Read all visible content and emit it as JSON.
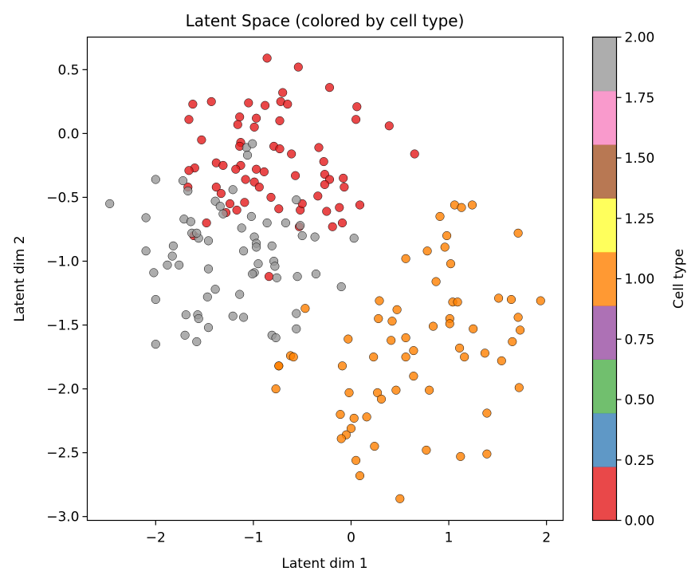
{
  "chart_data": {
    "type": "scatter",
    "title": "Latent Space (colored by cell type)",
    "xlabel": "Latent dim 1",
    "ylabel": "Latent dim 2",
    "xlim": [
      -2.7,
      2.17
    ],
    "ylim": [
      -3.03,
      0.755
    ],
    "xticks": [
      -2,
      -1,
      0,
      1,
      2
    ],
    "xtick_labels": [
      "−2",
      "−1",
      "0",
      "1",
      "2"
    ],
    "yticks": [
      0.5,
      0.0,
      -0.5,
      -1.0,
      -1.5,
      -2.0,
      -2.5,
      -3.0
    ],
    "ytick_labels": [
      "0.5",
      "0.0",
      "−0.5",
      "−1.0",
      "−1.5",
      "−2.0",
      "−2.5",
      "−3.0"
    ],
    "grid": false,
    "colorbar": {
      "label": "Cell type",
      "range": [
        0.0,
        2.0
      ],
      "ticks": [
        0.0,
        0.25,
        0.5,
        0.75,
        1.0,
        1.25,
        1.5,
        1.75,
        2.0
      ],
      "tick_labels": [
        "0.00",
        "0.25",
        "0.50",
        "0.75",
        "1.00",
        "1.25",
        "1.50",
        "1.75",
        "2.00"
      ],
      "colors": [
        "#e41a1c",
        "#377eb8",
        "#4daf4a",
        "#984ea3",
        "#ff7f00",
        "#ffff33",
        "#a65628",
        "#f781bf",
        "#999999"
      ]
    },
    "series": [
      {
        "cell_type": 0,
        "color": "#e41a1c",
        "points": [
          [
            -0.86,
            0.59
          ],
          [
            -0.54,
            0.52
          ],
          [
            -0.22,
            0.36
          ],
          [
            -1.62,
            0.23
          ],
          [
            -1.43,
            0.25
          ],
          [
            -0.72,
            0.25
          ],
          [
            -0.7,
            0.32
          ],
          [
            -0.65,
            0.23
          ],
          [
            -1.05,
            0.24
          ],
          [
            -0.88,
            0.22
          ],
          [
            0.06,
            0.21
          ],
          [
            -1.66,
            0.11
          ],
          [
            -1.14,
            0.13
          ],
          [
            -0.97,
            0.12
          ],
          [
            -0.73,
            0.1
          ],
          [
            -1.16,
            0.07
          ],
          [
            -0.99,
            0.05
          ],
          [
            0.05,
            0.11
          ],
          [
            0.39,
            0.06
          ],
          [
            -1.53,
            -0.05
          ],
          [
            -1.13,
            -0.07
          ],
          [
            -1.14,
            -0.1
          ],
          [
            -0.79,
            -0.1
          ],
          [
            -0.73,
            -0.12
          ],
          [
            -0.33,
            -0.11
          ],
          [
            0.65,
            -0.16
          ],
          [
            -0.61,
            -0.16
          ],
          [
            -1.38,
            -0.23
          ],
          [
            -1.31,
            -0.25
          ],
          [
            -1.13,
            -0.25
          ],
          [
            -1.18,
            -0.28
          ],
          [
            -1.6,
            -0.27
          ],
          [
            -1.66,
            -0.29
          ],
          [
            -0.97,
            -0.28
          ],
          [
            -0.89,
            -0.3
          ],
          [
            -0.57,
            -0.33
          ],
          [
            -0.28,
            -0.22
          ],
          [
            -0.27,
            -0.32
          ],
          [
            -0.22,
            -0.36
          ],
          [
            -0.08,
            -0.35
          ],
          [
            -1.08,
            -0.36
          ],
          [
            -1.67,
            -0.42
          ],
          [
            -1.38,
            -0.42
          ],
          [
            -0.99,
            -0.38
          ],
          [
            -0.94,
            -0.42
          ],
          [
            -0.82,
            -0.5
          ],
          [
            -0.27,
            -0.4
          ],
          [
            -0.07,
            -0.42
          ],
          [
            -1.33,
            -0.47
          ],
          [
            -1.24,
            -0.55
          ],
          [
            -1.09,
            -0.54
          ],
          [
            -0.34,
            -0.49
          ],
          [
            -0.52,
            -0.6
          ],
          [
            -0.74,
            -0.59
          ],
          [
            -0.5,
            -0.55
          ],
          [
            -0.25,
            -0.61
          ],
          [
            -0.12,
            -0.58
          ],
          [
            0.09,
            -0.56
          ],
          [
            -1.17,
            -0.6
          ],
          [
            -1.28,
            -0.62
          ],
          [
            -1.48,
            -0.7
          ],
          [
            -1.61,
            -0.8
          ],
          [
            -0.53,
            -0.73
          ],
          [
            -0.19,
            -0.73
          ],
          [
            -0.09,
            -0.7
          ],
          [
            -0.84,
            -1.12
          ]
        ]
      },
      {
        "cell_type": 1,
        "color": "#ff7f00",
        "points": [
          [
            1.06,
            -0.56
          ],
          [
            1.13,
            -0.58
          ],
          [
            1.24,
            -0.56
          ],
          [
            0.91,
            -0.65
          ],
          [
            1.71,
            -0.78
          ],
          [
            0.98,
            -0.8
          ],
          [
            0.56,
            -0.98
          ],
          [
            0.78,
            -0.92
          ],
          [
            0.96,
            -0.89
          ],
          [
            1.02,
            -1.02
          ],
          [
            0.87,
            -1.16
          ],
          [
            1.04,
            -1.32
          ],
          [
            1.09,
            -1.32
          ],
          [
            1.51,
            -1.29
          ],
          [
            1.64,
            -1.3
          ],
          [
            1.94,
            -1.31
          ],
          [
            0.29,
            -1.31
          ],
          [
            0.47,
            -1.38
          ],
          [
            0.28,
            -1.45
          ],
          [
            0.42,
            -1.47
          ],
          [
            -0.47,
            -1.37
          ],
          [
            1.01,
            -1.45
          ],
          [
            1.01,
            -1.49
          ],
          [
            1.71,
            -1.44
          ],
          [
            0.84,
            -1.51
          ],
          [
            1.25,
            -1.53
          ],
          [
            1.73,
            -1.54
          ],
          [
            0.56,
            -1.6
          ],
          [
            0.41,
            -1.62
          ],
          [
            -0.03,
            -1.61
          ],
          [
            1.65,
            -1.63
          ],
          [
            0.64,
            -1.7
          ],
          [
            1.37,
            -1.72
          ],
          [
            0.23,
            -1.75
          ],
          [
            0.56,
            -1.75
          ],
          [
            1.11,
            -1.68
          ],
          [
            1.16,
            -1.75
          ],
          [
            1.54,
            -1.78
          ],
          [
            -0.62,
            -1.74
          ],
          [
            -0.59,
            -1.75
          ],
          [
            -0.74,
            -1.82
          ],
          [
            -0.74,
            -1.82
          ],
          [
            -0.09,
            -1.82
          ],
          [
            0.64,
            -1.9
          ],
          [
            -0.77,
            -2.0
          ],
          [
            -0.02,
            -2.03
          ],
          [
            0.27,
            -2.03
          ],
          [
            0.31,
            -2.08
          ],
          [
            0.46,
            -2.01
          ],
          [
            0.8,
            -2.01
          ],
          [
            1.72,
            -1.99
          ],
          [
            -0.11,
            -2.2
          ],
          [
            0.03,
            -2.23
          ],
          [
            0.16,
            -2.22
          ],
          [
            1.39,
            -2.19
          ],
          [
            0.0,
            -2.31
          ],
          [
            -0.05,
            -2.36
          ],
          [
            -0.1,
            -2.39
          ],
          [
            0.24,
            -2.45
          ],
          [
            0.77,
            -2.48
          ],
          [
            1.12,
            -2.53
          ],
          [
            1.39,
            -2.51
          ],
          [
            0.05,
            -2.56
          ],
          [
            0.09,
            -2.68
          ],
          [
            0.5,
            -2.86
          ]
        ]
      },
      {
        "cell_type": 2,
        "color": "#999999",
        "points": [
          [
            -2.47,
            -0.55
          ],
          [
            -2.1,
            -0.66
          ],
          [
            -2.1,
            -0.92
          ],
          [
            -2.02,
            -1.09
          ],
          [
            -2.0,
            -0.36
          ],
          [
            -1.83,
            -0.96
          ],
          [
            -1.82,
            -0.88
          ],
          [
            -1.72,
            -0.37
          ],
          [
            -1.67,
            -0.45
          ],
          [
            -1.71,
            -0.67
          ],
          [
            -1.64,
            -0.69
          ],
          [
            -1.63,
            -0.78
          ],
          [
            -1.56,
            -0.82
          ],
          [
            -1.58,
            -0.78
          ],
          [
            -1.46,
            -0.84
          ],
          [
            -1.39,
            -0.53
          ],
          [
            -1.34,
            -0.57
          ],
          [
            -1.31,
            -0.63
          ],
          [
            -1.46,
            -1.06
          ],
          [
            -1.39,
            -1.22
          ],
          [
            -1.76,
            -1.03
          ],
          [
            -1.88,
            -1.03
          ],
          [
            -1.47,
            -1.28
          ],
          [
            -1.69,
            -1.42
          ],
          [
            -1.57,
            -1.42
          ],
          [
            -1.56,
            -1.45
          ],
          [
            -1.46,
            -1.52
          ],
          [
            -1.7,
            -1.58
          ],
          [
            -1.58,
            -1.63
          ],
          [
            -2.0,
            -1.3
          ],
          [
            -2.0,
            -1.65
          ],
          [
            -1.07,
            -0.11
          ],
          [
            -1.01,
            -0.08
          ],
          [
            -1.06,
            -0.17
          ],
          [
            -1.21,
            -0.44
          ],
          [
            -0.86,
            -0.7
          ],
          [
            -1.12,
            -0.74
          ],
          [
            -1.02,
            -0.65
          ],
          [
            -0.99,
            -0.81
          ],
          [
            -0.97,
            -0.86
          ],
          [
            -0.97,
            -0.89
          ],
          [
            -1.1,
            -0.92
          ],
          [
            -0.81,
            -0.88
          ],
          [
            -0.67,
            -0.7
          ],
          [
            -0.56,
            -0.52
          ],
          [
            -0.52,
            -0.72
          ],
          [
            -0.5,
            -0.8
          ],
          [
            -0.37,
            -0.81
          ],
          [
            0.03,
            -0.82
          ],
          [
            -0.99,
            -1.09
          ],
          [
            -1.01,
            -1.1
          ],
          [
            -0.95,
            -1.02
          ],
          [
            -0.79,
            -1.0
          ],
          [
            -0.78,
            -1.04
          ],
          [
            -0.76,
            -1.13
          ],
          [
            -0.55,
            -1.12
          ],
          [
            -0.36,
            -1.1
          ],
          [
            -0.1,
            -1.2
          ],
          [
            -1.14,
            -1.26
          ],
          [
            -1.21,
            -1.43
          ],
          [
            -1.1,
            -1.44
          ],
          [
            -0.56,
            -1.41
          ],
          [
            -0.56,
            -1.53
          ],
          [
            -0.81,
            -1.58
          ],
          [
            -0.77,
            -1.6
          ]
        ]
      }
    ]
  }
}
